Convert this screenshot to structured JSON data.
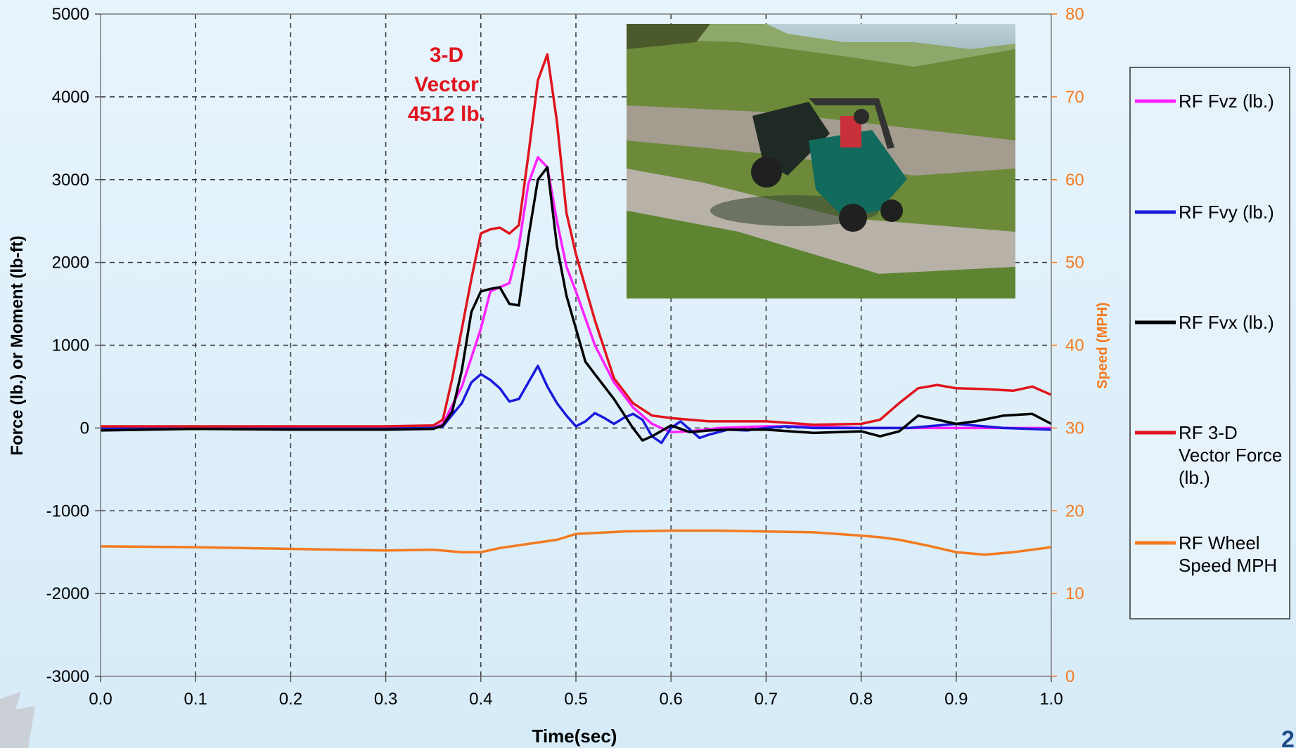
{
  "chart_data": {
    "type": "line",
    "title": "",
    "xlabel": "Time(sec)",
    "ylabel": "Force (lb.) or Moment (lb-ft)",
    "y2label": "Speed (MPH)",
    "xlim": [
      0,
      1
    ],
    "ylim": [
      -3000,
      5000
    ],
    "y2lim": [
      0,
      80
    ],
    "x_ticks": [
      "0.0",
      "0.1",
      "0.2",
      "0.3",
      "0.4",
      "0.5",
      "0.6",
      "0.7",
      "0.8",
      "0.9",
      "1.0"
    ],
    "y_ticks": [
      "5000",
      "4000",
      "3000",
      "2000",
      "1000",
      "0",
      "-1000",
      "-2000",
      "-3000"
    ],
    "y2_ticks": [
      "80",
      "70",
      "60",
      "50",
      "40",
      "30",
      "20",
      "10",
      "0"
    ],
    "grid": true,
    "legend_position": "right",
    "annotation": {
      "lines": [
        "3-D",
        "Vector",
        "4512 lb."
      ],
      "x": 0.365,
      "y": 4300
    },
    "series": [
      {
        "name": "RF Fvz (lb.)",
        "color": "#ff22ff",
        "axis": "left",
        "x": [
          0,
          0.1,
          0.2,
          0.3,
          0.35,
          0.36,
          0.38,
          0.4,
          0.41,
          0.42,
          0.43,
          0.44,
          0.45,
          0.46,
          0.47,
          0.48,
          0.49,
          0.5,
          0.52,
          0.54,
          0.56,
          0.58,
          0.6,
          0.62,
          0.65,
          0.7,
          0.75,
          0.8,
          0.85,
          0.9,
          0.95,
          1.0
        ],
        "y": [
          0,
          0,
          0,
          0,
          0,
          50,
          500,
          1200,
          1650,
          1700,
          1750,
          2200,
          2950,
          3270,
          3150,
          2500,
          1950,
          1650,
          1000,
          550,
          250,
          50,
          -50,
          -40,
          0,
          20,
          20,
          0,
          0,
          0,
          0,
          0
        ]
      },
      {
        "name": "RF Fvy (lb.)",
        "color": "#1a1adc",
        "axis": "left",
        "x": [
          0,
          0.1,
          0.2,
          0.3,
          0.35,
          0.36,
          0.38,
          0.39,
          0.4,
          0.41,
          0.42,
          0.43,
          0.44,
          0.45,
          0.46,
          0.47,
          0.48,
          0.49,
          0.5,
          0.51,
          0.52,
          0.53,
          0.54,
          0.55,
          0.56,
          0.57,
          0.58,
          0.59,
          0.6,
          0.61,
          0.62,
          0.63,
          0.64,
          0.66,
          0.68,
          0.7,
          0.72,
          0.75,
          0.8,
          0.85,
          0.9,
          0.95,
          1.0
        ],
        "y": [
          0,
          0,
          0,
          0,
          0,
          20,
          300,
          550,
          650,
          580,
          480,
          320,
          350,
          550,
          750,
          500,
          300,
          150,
          20,
          80,
          180,
          120,
          50,
          120,
          170,
          100,
          -100,
          -180,
          0,
          80,
          -20,
          -120,
          -80,
          -20,
          -30,
          0,
          20,
          0,
          0,
          0,
          50,
          0,
          -20
        ]
      },
      {
        "name": "RF Fvx (lb.)",
        "color": "#000000",
        "axis": "left",
        "x": [
          0,
          0.1,
          0.2,
          0.3,
          0.35,
          0.36,
          0.37,
          0.38,
          0.39,
          0.4,
          0.41,
          0.42,
          0.43,
          0.44,
          0.45,
          0.46,
          0.47,
          0.48,
          0.49,
          0.5,
          0.51,
          0.52,
          0.54,
          0.56,
          0.57,
          0.58,
          0.6,
          0.62,
          0.64,
          0.66,
          0.7,
          0.75,
          0.8,
          0.82,
          0.84,
          0.86,
          0.88,
          0.9,
          0.92,
          0.95,
          0.98,
          1.0
        ],
        "y": [
          -30,
          -10,
          -20,
          -20,
          -10,
          30,
          200,
          700,
          1400,
          1650,
          1680,
          1700,
          1500,
          1480,
          2300,
          3000,
          3150,
          2200,
          1600,
          1200,
          800,
          650,
          350,
          0,
          -150,
          -100,
          30,
          -50,
          -30,
          -20,
          -20,
          -60,
          -40,
          -100,
          -40,
          150,
          100,
          50,
          80,
          150,
          170,
          50
        ]
      },
      {
        "name": "RF 3-D Vector Force (lb.)",
        "color": "#e0141e",
        "axis": "left",
        "x": [
          0,
          0.1,
          0.2,
          0.3,
          0.35,
          0.36,
          0.37,
          0.38,
          0.39,
          0.4,
          0.41,
          0.42,
          0.43,
          0.44,
          0.45,
          0.46,
          0.47,
          0.48,
          0.49,
          0.5,
          0.52,
          0.54,
          0.56,
          0.58,
          0.6,
          0.62,
          0.64,
          0.66,
          0.7,
          0.75,
          0.8,
          0.82,
          0.84,
          0.86,
          0.88,
          0.9,
          0.93,
          0.96,
          0.98,
          1.0
        ],
        "y": [
          20,
          20,
          20,
          20,
          30,
          100,
          600,
          1200,
          1800,
          2350,
          2400,
          2420,
          2350,
          2450,
          3300,
          4200,
          4512,
          3700,
          2600,
          2100,
          1300,
          600,
          300,
          150,
          120,
          100,
          80,
          80,
          80,
          40,
          50,
          100,
          300,
          480,
          520,
          480,
          470,
          450,
          500,
          400
        ]
      },
      {
        "name": "RF Wheel Speed MPH",
        "color": "#f47a1f",
        "axis": "right",
        "x": [
          0,
          0.1,
          0.2,
          0.3,
          0.35,
          0.38,
          0.4,
          0.42,
          0.45,
          0.48,
          0.5,
          0.55,
          0.6,
          0.65,
          0.7,
          0.75,
          0.8,
          0.82,
          0.84,
          0.87,
          0.9,
          0.93,
          0.96,
          1.0
        ],
        "y": [
          15.7,
          15.6,
          15.4,
          15.2,
          15.3,
          15.0,
          15.0,
          15.5,
          16.0,
          16.5,
          17.2,
          17.5,
          17.6,
          17.6,
          17.5,
          17.4,
          17.0,
          16.8,
          16.5,
          15.8,
          15.0,
          14.7,
          15.0,
          15.6
        ]
      }
    ]
  },
  "photo": {
    "description_icon": "utv-rollover-photo"
  },
  "page_number": "2"
}
